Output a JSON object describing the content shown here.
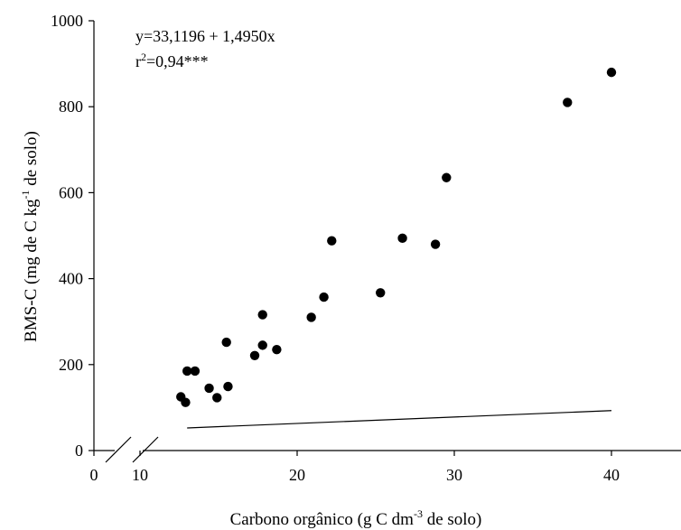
{
  "chart_data": {
    "type": "scatter",
    "xlabel": {
      "pre": "Carbono orgânico (g C dm",
      "sup": "-3",
      "post": " de solo)"
    },
    "ylabel": {
      "pre": "BMS-C (mg de C kg",
      "sup": "-1",
      "post": " de solo)"
    },
    "xlim": [
      10,
      45
    ],
    "ylim": [
      0,
      1000
    ],
    "x_axis_break": true,
    "x_origin_label": "0",
    "xticks": [
      10,
      20,
      30,
      40
    ],
    "xtick_labels": [
      "10",
      "20",
      "30",
      "40"
    ],
    "yticks": [
      0,
      200,
      400,
      600,
      800,
      1000
    ],
    "ytick_labels": [
      "0",
      "200",
      "400",
      "600",
      "800",
      "1000"
    ],
    "annotations": {
      "equation": "y=33,1196 + 1,4950x",
      "r2_pre": "r",
      "r2_sup": "2",
      "r2_post": "=0,94***"
    },
    "regression": {
      "intercept": 33.1196,
      "slope": 1.495,
      "x_range": [
        13.0,
        40.0
      ]
    },
    "series": [
      {
        "marker_color": "#000000",
        "points": [
          {
            "x": 12.6,
            "y": 125
          },
          {
            "x": 12.9,
            "y": 112
          },
          {
            "x": 13.0,
            "y": 185
          },
          {
            "x": 13.5,
            "y": 185
          },
          {
            "x": 14.4,
            "y": 145
          },
          {
            "x": 14.9,
            "y": 123
          },
          {
            "x": 15.5,
            "y": 252
          },
          {
            "x": 15.6,
            "y": 149
          },
          {
            "x": 17.3,
            "y": 221
          },
          {
            "x": 17.8,
            "y": 316
          },
          {
            "x": 17.8,
            "y": 245
          },
          {
            "x": 18.7,
            "y": 235
          },
          {
            "x": 20.9,
            "y": 310
          },
          {
            "x": 21.7,
            "y": 357
          },
          {
            "x": 22.2,
            "y": 488
          },
          {
            "x": 25.3,
            "y": 367
          },
          {
            "x": 26.7,
            "y": 494
          },
          {
            "x": 28.8,
            "y": 480
          },
          {
            "x": 29.5,
            "y": 635
          },
          {
            "x": 37.2,
            "y": 810
          },
          {
            "x": 40.0,
            "y": 880
          }
        ]
      }
    ]
  }
}
